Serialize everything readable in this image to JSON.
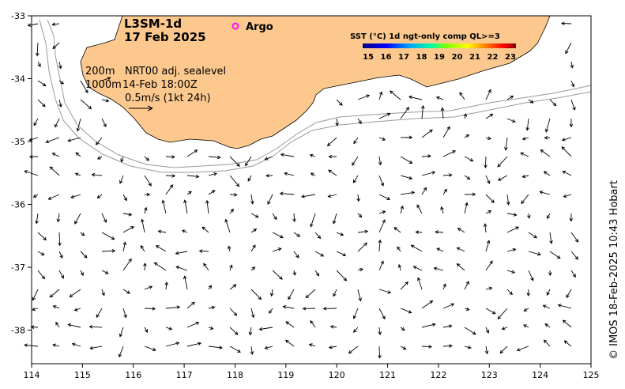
{
  "title": {
    "product": "L3SM-1d",
    "date": "17 Feb 2025"
  },
  "argo_label": "Argo",
  "isobaths": [
    "200m",
    "1000m"
  ],
  "current_info": {
    "source": "NRT00 adj. sealevel",
    "time": "14-Feb 18:00Z",
    "scale": "0.5m/s (1kt 24h)"
  },
  "colorbar": {
    "title": "SST (°C) 1d ngt-only comp QL>=3",
    "ticks": [
      "15",
      "16",
      "17",
      "18",
      "19",
      "20",
      "21",
      "22",
      "23"
    ]
  },
  "credit": "© IMOS 18-Feb-2025 10:43 Hobart",
  "colors": {
    "land": "#fcc88e",
    "argo": "#ff00ff",
    "isobath": "#999999",
    "arrow": "#000000"
  },
  "axes": {
    "lon_ticks": [
      "114",
      "115",
      "116",
      "117",
      "118",
      "119",
      "120",
      "121",
      "122",
      "123",
      "124",
      "125"
    ],
    "lat_ticks": [
      "-33",
      "-34",
      "-35",
      "-36",
      "-37",
      "-38"
    ]
  }
}
